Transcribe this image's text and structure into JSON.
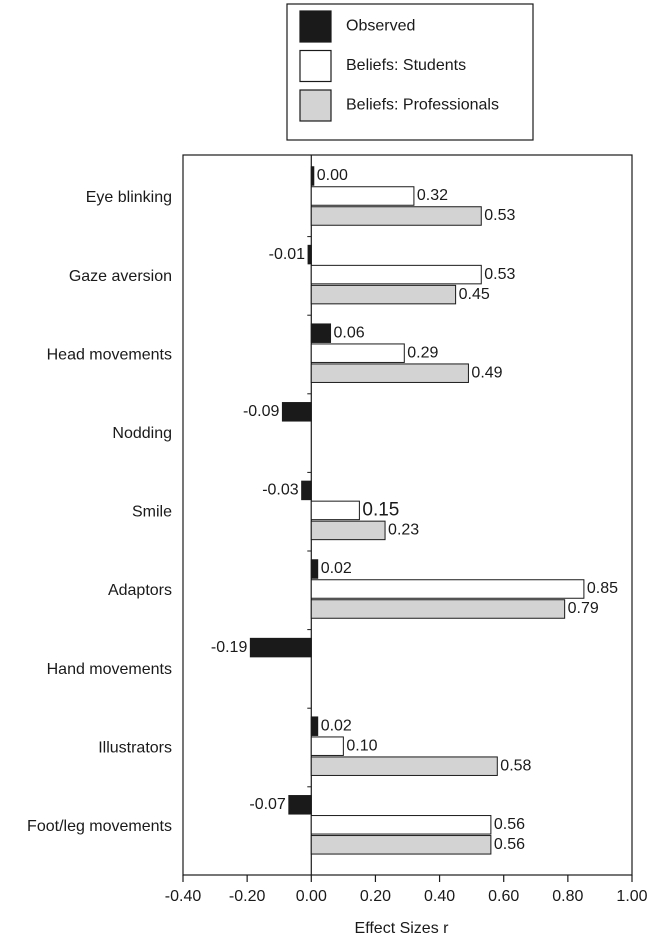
{
  "chart_data": {
    "type": "bar",
    "orientation": "horizontal",
    "categories": [
      "Eye blinking",
      "Gaze aversion",
      "Head movements",
      "Nodding",
      "Smile",
      "Adaptors",
      "Hand movements",
      "Illustrators",
      "Foot/leg movements"
    ],
    "series": [
      {
        "name": "Observed",
        "color": "#1a1a1a",
        "values": [
          0.0,
          -0.01,
          0.06,
          -0.09,
          -0.03,
          0.02,
          -0.19,
          0.02,
          -0.07
        ],
        "labels": [
          "0.00",
          "-0.01",
          "0.06",
          "-0.09",
          "-0.03",
          "0.02",
          "-0.19",
          "0.02",
          "-0.07"
        ]
      },
      {
        "name": "Beliefs: Students",
        "color": "#ffffff",
        "values": [
          0.32,
          0.53,
          0.29,
          null,
          0.15,
          0.85,
          null,
          0.1,
          0.56
        ],
        "labels": [
          "0.32",
          "0.53",
          "0.29",
          "",
          "0.15",
          "0.85",
          "",
          "0.10",
          "0.56"
        ]
      },
      {
        "name": "Beliefs: Professionals",
        "color": "#d3d3d3",
        "values": [
          0.53,
          0.45,
          0.49,
          null,
          0.23,
          0.79,
          null,
          0.58,
          0.56
        ],
        "labels": [
          "0.53",
          "0.45",
          "0.49",
          "",
          "0.23",
          "0.79",
          "",
          "0.58",
          "0.56"
        ]
      }
    ],
    "xlabel": "Effect Sizes r",
    "xlim": [
      -0.4,
      1.0
    ],
    "xticks": [
      -0.4,
      -0.2,
      0.0,
      0.2,
      0.4,
      0.6,
      0.8,
      1.0
    ],
    "xtick_labels": [
      "-0.40",
      "-0.20",
      "0.00",
      "0.20",
      "0.40",
      "0.60",
      "0.80",
      "1.00"
    ],
    "grid": false,
    "legend_position": "top"
  }
}
